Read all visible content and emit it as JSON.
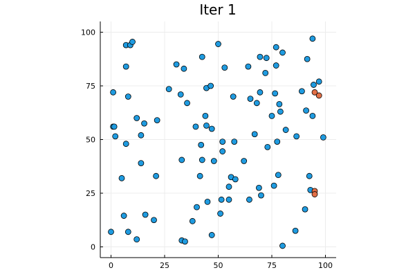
{
  "chart_data": {
    "type": "scatter",
    "title": "Iter 1",
    "xlabel": "",
    "ylabel": "",
    "xlim": [
      -5,
      105
    ],
    "ylim": [
      -5,
      105
    ],
    "xticks": [
      "0",
      "25",
      "50",
      "75",
      "100"
    ],
    "yticks": [
      "0",
      "25",
      "50",
      "75",
      "100"
    ],
    "grid": true,
    "legend": "none",
    "series": [
      {
        "color": "#1f9be0",
        "points": [
          [
            1,
            72
          ],
          [
            1,
            56
          ],
          [
            1.5,
            56
          ],
          [
            2,
            51.5
          ],
          [
            0,
            7
          ],
          [
            7,
            84
          ],
          [
            7,
            48
          ],
          [
            7,
            94
          ],
          [
            8,
            70
          ],
          [
            8,
            7
          ],
          [
            9,
            94
          ],
          [
            10,
            95.5
          ],
          [
            5,
            32
          ],
          [
            6,
            14.5
          ],
          [
            12,
            60
          ],
          [
            12,
            3.5
          ],
          [
            14,
            52
          ],
          [
            14,
            39
          ],
          [
            15.5,
            57.5
          ],
          [
            16,
            15
          ],
          [
            20,
            12.5
          ],
          [
            21,
            33
          ],
          [
            21.5,
            59
          ],
          [
            27,
            73.5
          ],
          [
            30.5,
            85
          ],
          [
            32.5,
            71
          ],
          [
            33,
            3
          ],
          [
            33,
            40.5
          ],
          [
            34,
            83
          ],
          [
            34.5,
            2.5
          ],
          [
            35.5,
            67
          ],
          [
            38,
            12
          ],
          [
            39.5,
            56
          ],
          [
            40,
            18.5
          ],
          [
            41.5,
            33
          ],
          [
            42,
            47.5
          ],
          [
            42.5,
            40.5
          ],
          [
            42.5,
            88.5
          ],
          [
            44,
            61
          ],
          [
            44.5,
            56.5
          ],
          [
            44.5,
            74
          ],
          [
            45,
            21
          ],
          [
            46.5,
            75
          ],
          [
            47,
            55
          ],
          [
            47,
            5.5
          ],
          [
            48,
            40
          ],
          [
            50,
            94.5
          ],
          [
            51,
            15.5
          ],
          [
            51.5,
            22
          ],
          [
            52,
            49
          ],
          [
            52,
            44.5
          ],
          [
            53,
            83.5
          ],
          [
            55,
            28
          ],
          [
            55,
            22
          ],
          [
            56,
            32.5
          ],
          [
            57,
            70
          ],
          [
            57.5,
            49
          ],
          [
            58,
            31.5
          ],
          [
            62,
            40
          ],
          [
            64,
            84
          ],
          [
            64.5,
            22
          ],
          [
            65,
            69
          ],
          [
            67,
            52.5
          ],
          [
            68,
            67
          ],
          [
            69,
            27.5
          ],
          [
            69.5,
            72
          ],
          [
            69.5,
            88.5
          ],
          [
            70,
            24
          ],
          [
            72,
            81
          ],
          [
            72.5,
            88
          ],
          [
            73,
            46.5
          ],
          [
            75,
            61
          ],
          [
            76,
            28.5
          ],
          [
            76.5,
            71.5
          ],
          [
            77,
            84.5
          ],
          [
            77,
            93
          ],
          [
            77.5,
            49
          ],
          [
            78,
            33.5
          ],
          [
            78.5,
            66.5
          ],
          [
            79,
            63
          ],
          [
            80,
            0.5
          ],
          [
            80,
            90.5
          ],
          [
            81.5,
            54.5
          ],
          [
            86,
            7.5
          ],
          [
            86.5,
            51.5
          ],
          [
            89,
            72.5
          ],
          [
            90.5,
            17.5
          ],
          [
            91,
            63.5
          ],
          [
            91.5,
            87.5
          ],
          [
            92.5,
            33
          ],
          [
            93,
            26.5
          ],
          [
            94,
            97
          ],
          [
            94,
            61
          ],
          [
            94.5,
            75.5
          ],
          [
            97,
            77
          ],
          [
            99,
            51
          ]
        ]
      },
      {
        "color": "#e26f46",
        "points": [
          [
            95,
            72
          ],
          [
            97,
            70.5
          ],
          [
            95,
            26
          ],
          [
            95,
            24.5
          ]
        ]
      }
    ]
  }
}
